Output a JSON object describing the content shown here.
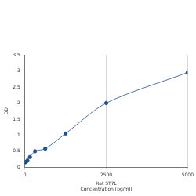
{
  "chart_data": {
    "type": "line",
    "x_label": "Rat ST7L\nConcentration (pg/ml)",
    "y_label": "OD",
    "x": [
      0,
      39,
      78,
      156,
      312,
      625,
      1250,
      2500,
      5000
    ],
    "values": [
      0.15,
      0.17,
      0.21,
      0.32,
      0.5,
      0.58,
      1.05,
      2.0,
      2.95
    ],
    "color": "#1f4e8c",
    "marker": "circle",
    "line_style": "solid",
    "xlim": [
      0,
      5000
    ],
    "xticks": [
      0,
      2500,
      5000
    ],
    "ylim": [
      0,
      3.5
    ],
    "yticks": [
      0,
      0.5,
      1,
      1.5,
      2,
      2.5,
      3,
      3.5
    ],
    "grid": true
  }
}
